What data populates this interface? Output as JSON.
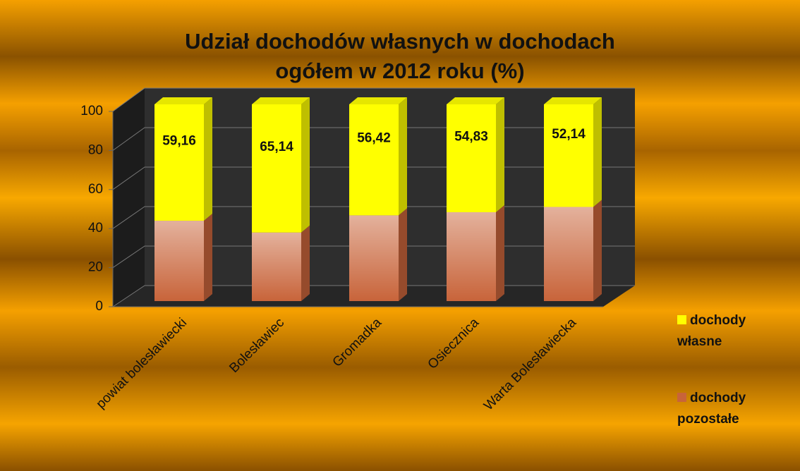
{
  "chart_data": {
    "type": "bar3d_stacked",
    "title": "Udział dochodów własnych w dochodach ogółem w 2012 roku (%)",
    "categories": [
      "powiat bolesławiecki",
      "Bolesławiec",
      "Gromadka",
      "Osiecznica",
      "Warta Bolesławiecka"
    ],
    "series": [
      {
        "name": "dochody własne",
        "color": "#ffff00",
        "values": [
          59.16,
          65.14,
          56.42,
          54.83,
          52.14
        ],
        "value_labels": [
          "59,16",
          "65,14",
          "56,42",
          "54,83",
          "52,14"
        ]
      },
      {
        "name": "dochody pozostałe",
        "color": "#c8643a",
        "values": [
          40.84,
          34.86,
          43.58,
          45.17,
          47.86
        ]
      }
    ],
    "stack_order": [
      "dochody pozostałe",
      "dochody własne"
    ],
    "ylim": [
      0,
      100
    ],
    "yticks": [
      0,
      20,
      40,
      60,
      80,
      100
    ],
    "grid": true,
    "legend": "right"
  }
}
